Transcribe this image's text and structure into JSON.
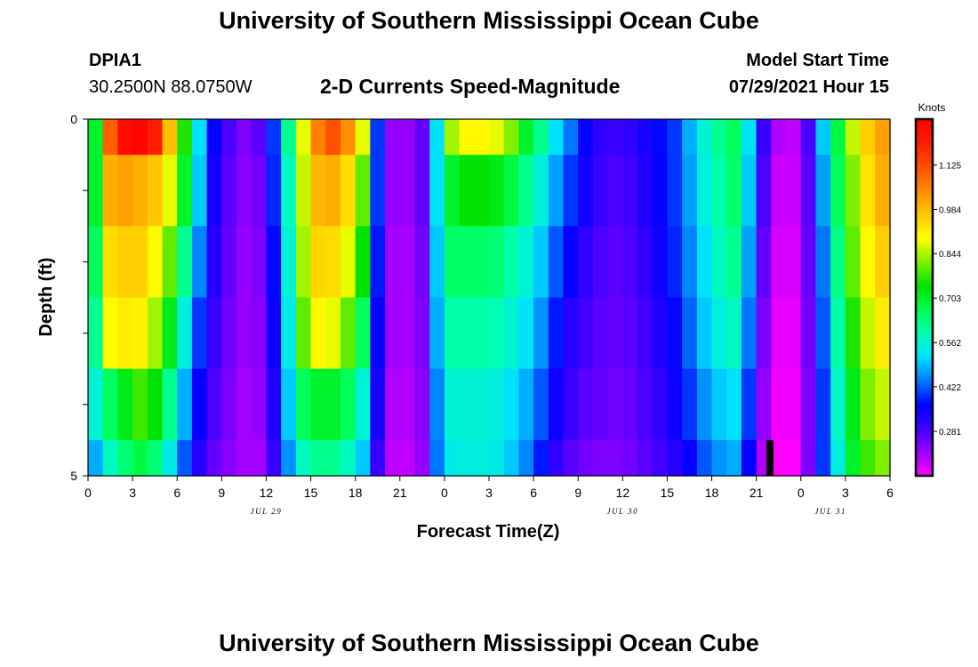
{
  "page": {
    "title_top": "University of Southern Mississippi Ocean Cube",
    "title_bottom": "University of Southern Mississippi Ocean Cube",
    "station_id": "DPIA1",
    "station_coords": "30.2500N  88.0750W",
    "model_start_label": "Model Start Time",
    "model_start_value": "07/29/2021 Hour 15"
  },
  "colors": {
    "background": "#ffffff",
    "axis": "#000000",
    "palette": [
      "#ff00ff",
      "#9c00ff",
      "#3f00ff",
      "#0000ff",
      "#0078ff",
      "#00e1ff",
      "#00ffb4",
      "#00ff50",
      "#00e100",
      "#7df000",
      "#ffff00",
      "#ffc800",
      "#ff8c00",
      "#ff5000",
      "#ff1e00",
      "#ff0000"
    ]
  },
  "chart_data": {
    "type": "heatmap",
    "title": "2-D Currents Speed-Magnitude",
    "xlabel": "Forecast Time(Z)",
    "ylabel": "Depth (ft)",
    "x_range_hours": [
      0,
      54
    ],
    "y_range_ft": [
      0,
      5
    ],
    "x_tick_labels": [
      "0",
      "3",
      "6",
      "9",
      "12",
      "15",
      "18",
      "21",
      "0",
      "3",
      "6",
      "9",
      "12",
      "15",
      "18",
      "21",
      "0",
      "3",
      "6"
    ],
    "y_tick_labels": [
      "0",
      "5"
    ],
    "y_ticks_ft": [
      0,
      1,
      2,
      3,
      4,
      5
    ],
    "date_labels": [
      {
        "text": "JUL 29",
        "hour": 12
      },
      {
        "text": "JUL 30",
        "hour": 36
      },
      {
        "text": "JUL 31",
        "hour": 50
      }
    ],
    "colorbar": {
      "unit": "Knots",
      "tick_labels": [
        "1.125",
        "0.984",
        "0.844",
        "0.703",
        "0.562",
        "0.422",
        "0.281"
      ],
      "tick_values": [
        1.125,
        0.984,
        0.844,
        0.703,
        0.562,
        0.422,
        0.281
      ],
      "range": [
        0.14,
        1.27
      ]
    },
    "depth_layers_ft": [
      0,
      0.5,
      1.5,
      2.5,
      3.5,
      4.5,
      5
    ],
    "hours": [
      0,
      1,
      2,
      3,
      4,
      5,
      6,
      7,
      8,
      9,
      10,
      11,
      12,
      13,
      14,
      15,
      16,
      17,
      18,
      19,
      20,
      21,
      22,
      23,
      24,
      25,
      26,
      27,
      28,
      29,
      30,
      31,
      32,
      33,
      34,
      35,
      36,
      37,
      38,
      39,
      40,
      41,
      42,
      43,
      44,
      45,
      46,
      47,
      48,
      49,
      50,
      51,
      52,
      53
    ],
    "speed_knots_by_layer": [
      [
        0.7,
        1.1,
        1.24,
        1.26,
        1.2,
        0.98,
        0.76,
        0.52,
        0.36,
        0.28,
        0.24,
        0.27,
        0.4,
        0.62,
        0.88,
        1.06,
        1.12,
        1.04,
        0.88,
        0.4,
        0.22,
        0.22,
        0.26,
        0.52,
        0.84,
        0.9,
        0.9,
        0.88,
        0.82,
        0.7,
        0.62,
        0.52,
        0.44,
        0.36,
        0.31,
        0.3,
        0.31,
        0.34,
        0.37,
        0.4,
        0.48,
        0.56,
        0.62,
        0.66,
        0.52,
        0.3,
        0.2,
        0.19,
        0.28,
        0.5,
        0.68,
        0.86,
        0.96,
        1.02
      ],
      [
        0.7,
        1.0,
        1.02,
        1.0,
        0.97,
        0.88,
        0.7,
        0.5,
        0.34,
        0.27,
        0.23,
        0.25,
        0.39,
        0.58,
        0.86,
        0.99,
        1.0,
        0.94,
        0.8,
        0.4,
        0.22,
        0.22,
        0.26,
        0.52,
        0.7,
        0.74,
        0.74,
        0.72,
        0.68,
        0.62,
        0.55,
        0.47,
        0.4,
        0.34,
        0.3,
        0.28,
        0.29,
        0.33,
        0.36,
        0.4,
        0.47,
        0.55,
        0.6,
        0.65,
        0.5,
        0.28,
        0.18,
        0.18,
        0.27,
        0.47,
        0.66,
        0.82,
        0.93,
        1.0
      ],
      [
        0.66,
        0.94,
        0.96,
        0.96,
        0.9,
        0.8,
        0.62,
        0.45,
        0.32,
        0.26,
        0.22,
        0.24,
        0.37,
        0.56,
        0.84,
        0.95,
        0.94,
        0.88,
        0.74,
        0.38,
        0.21,
        0.21,
        0.25,
        0.5,
        0.65,
        0.65,
        0.65,
        0.64,
        0.6,
        0.56,
        0.5,
        0.42,
        0.36,
        0.31,
        0.28,
        0.27,
        0.28,
        0.31,
        0.35,
        0.39,
        0.45,
        0.52,
        0.58,
        0.62,
        0.47,
        0.26,
        0.17,
        0.17,
        0.26,
        0.44,
        0.63,
        0.8,
        0.9,
        0.96
      ],
      [
        0.62,
        0.9,
        0.92,
        0.91,
        0.84,
        0.72,
        0.55,
        0.4,
        0.3,
        0.25,
        0.22,
        0.23,
        0.35,
        0.54,
        0.8,
        0.9,
        0.88,
        0.8,
        0.66,
        0.36,
        0.21,
        0.21,
        0.24,
        0.48,
        0.6,
        0.6,
        0.6,
        0.59,
        0.56,
        0.52,
        0.46,
        0.38,
        0.32,
        0.29,
        0.27,
        0.26,
        0.27,
        0.29,
        0.33,
        0.37,
        0.43,
        0.5,
        0.55,
        0.58,
        0.44,
        0.24,
        0.16,
        0.16,
        0.25,
        0.42,
        0.6,
        0.76,
        0.86,
        0.92
      ],
      [
        0.56,
        0.66,
        0.72,
        0.78,
        0.74,
        0.62,
        0.48,
        0.36,
        0.28,
        0.24,
        0.21,
        0.22,
        0.33,
        0.5,
        0.66,
        0.7,
        0.7,
        0.66,
        0.56,
        0.34,
        0.2,
        0.2,
        0.23,
        0.45,
        0.56,
        0.56,
        0.56,
        0.55,
        0.52,
        0.48,
        0.42,
        0.35,
        0.3,
        0.27,
        0.26,
        0.25,
        0.26,
        0.28,
        0.31,
        0.35,
        0.4,
        0.46,
        0.5,
        0.52,
        0.4,
        0.22,
        0.15,
        0.15,
        0.24,
        0.4,
        0.57,
        0.72,
        0.82,
        0.86
      ],
      [
        0.48,
        0.58,
        0.64,
        0.68,
        0.64,
        0.54,
        0.42,
        0.32,
        0.26,
        0.23,
        0.21,
        0.21,
        0.3,
        0.46,
        0.58,
        0.62,
        0.62,
        0.58,
        0.5,
        0.3,
        0.19,
        0.19,
        0.22,
        0.44,
        0.54,
        0.55,
        0.55,
        0.54,
        0.5,
        0.45,
        0.38,
        0.31,
        0.27,
        0.25,
        0.24,
        0.24,
        0.25,
        0.27,
        0.29,
        0.32,
        0.36,
        0.42,
        0.46,
        0.48,
        0.36,
        0.2,
        0.14,
        0.14,
        0.24,
        0.4,
        0.55,
        0.7,
        0.78,
        0.82
      ]
    ]
  }
}
